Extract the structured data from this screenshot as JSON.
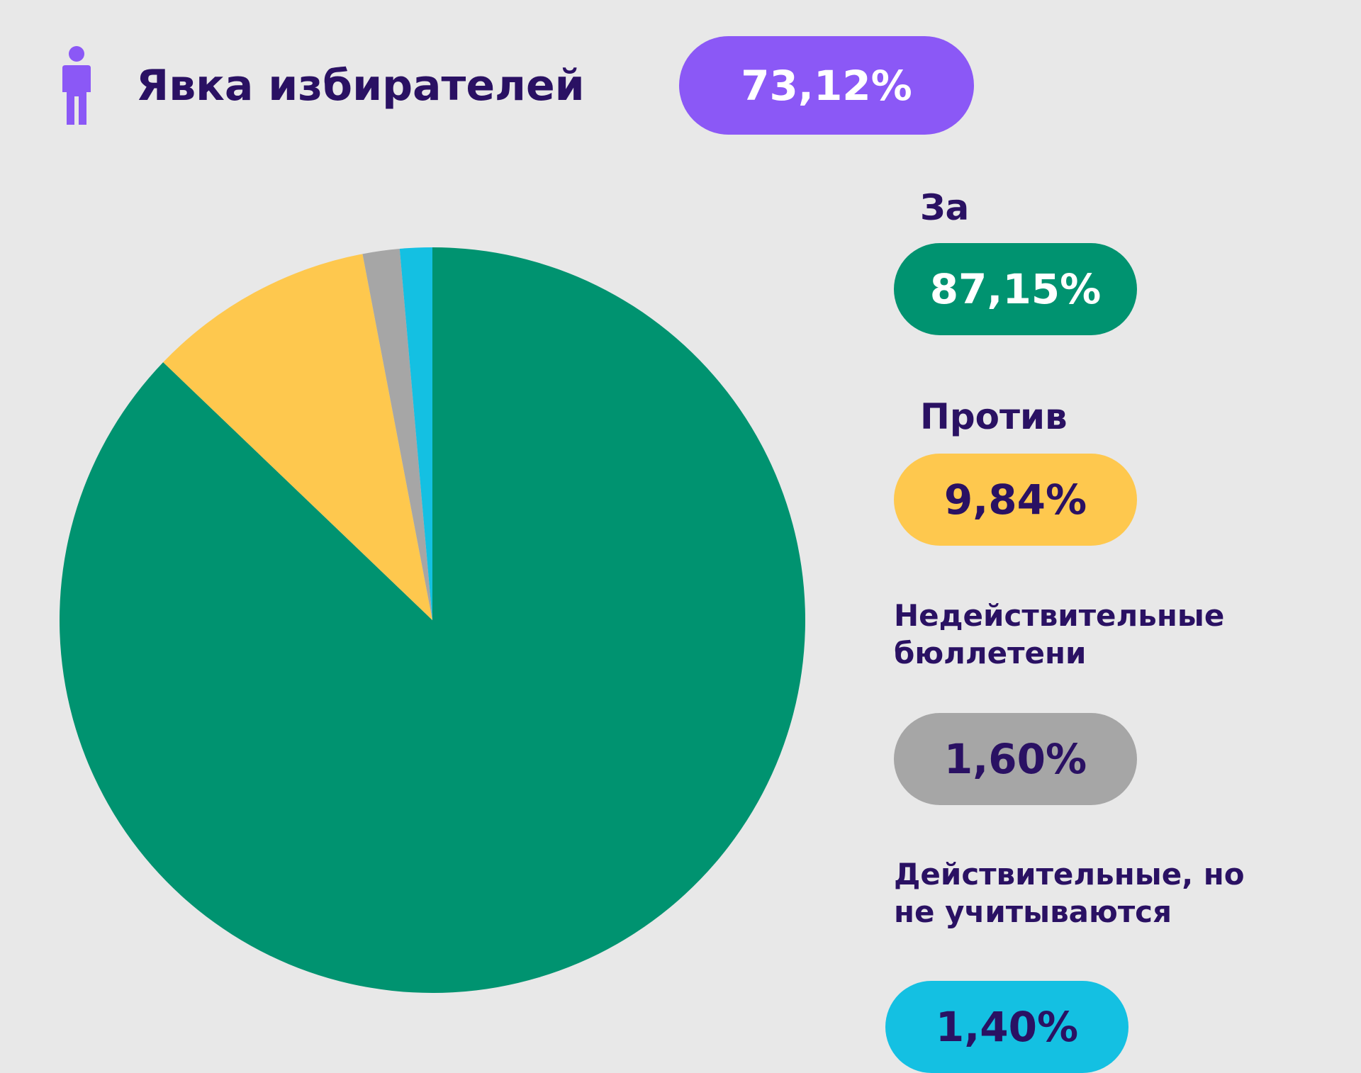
{
  "header": {
    "icon": "person-icon",
    "title": "Явка избирателей",
    "turnout_value": "73,12%",
    "turnout_color": "#8b58f6"
  },
  "chart_data": {
    "type": "pie",
    "title": "Явка избирателей",
    "start_angle": "top",
    "direction": "clockwise",
    "slices": [
      {
        "label": "За",
        "value": 87.15,
        "display": "87,15%",
        "color": "#009370",
        "text_color": "#ffffff"
      },
      {
        "label": "Против",
        "value": 9.84,
        "display": "9,84%",
        "color": "#fec84e",
        "text_color": "#2a1163"
      },
      {
        "label": "Недействительные бюллетени",
        "value": 1.6,
        "display": "1,60%",
        "color": "#a6a6a6",
        "text_color": "#2a1163"
      },
      {
        "label": "Действительные, но не учитываются",
        "value": 1.4,
        "display": "1,40%",
        "color": "#14c0e2",
        "text_color": "#2a1163"
      }
    ]
  }
}
